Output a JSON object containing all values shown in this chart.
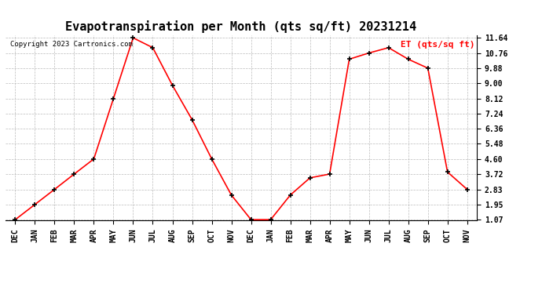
{
  "title": "Evapotranspiration per Month (qts sq/ft) 20231214",
  "legend_label": "ET (qts/sq ft)",
  "copyright": "Copyright 2023 Cartronics.com",
  "x_labels": [
    "DEC",
    "JAN",
    "FEB",
    "MAR",
    "APR",
    "MAY",
    "JUN",
    "JUL",
    "AUG",
    "SEP",
    "OCT",
    "NOV",
    "DEC",
    "JAN",
    "FEB",
    "MAR",
    "APR",
    "MAY",
    "JUN",
    "JUL",
    "AUG",
    "SEP",
    "OCT",
    "NOV"
  ],
  "y_values": [
    1.07,
    1.95,
    2.83,
    3.72,
    4.6,
    8.12,
    11.64,
    11.07,
    8.88,
    6.88,
    4.6,
    2.5,
    1.07,
    1.07,
    2.5,
    3.5,
    3.72,
    10.4,
    10.76,
    11.07,
    10.4,
    9.88,
    3.84,
    2.83
  ],
  "y_ticks": [
    1.07,
    1.95,
    2.83,
    3.72,
    4.6,
    5.48,
    6.36,
    7.24,
    8.12,
    9.0,
    9.88,
    10.76,
    11.64
  ],
  "ylim_min": 1.07,
  "ylim_max": 11.64,
  "line_color": "red",
  "marker_color": "black",
  "legend_color": "red",
  "copyright_color": "black",
  "grid_color": "#bbbbbb",
  "background_color": "white",
  "title_fontsize": 11,
  "legend_fontsize": 8,
  "tick_fontsize": 7,
  "copyright_fontsize": 6.5
}
